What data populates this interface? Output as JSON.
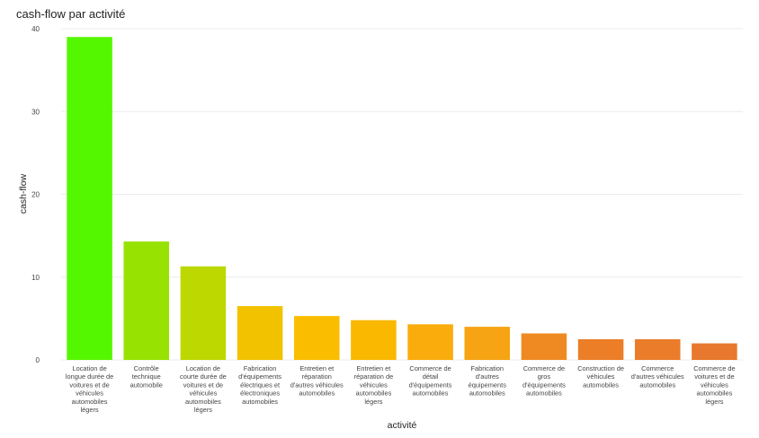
{
  "chart_data": {
    "type": "bar",
    "title": "cash-flow par activité",
    "xlabel": "activité",
    "ylabel": "cash-flow",
    "ylim": [
      0,
      40
    ],
    "yticks": [
      0,
      10,
      20,
      30,
      40
    ],
    "grid": true,
    "categories": [
      [
        "Location de",
        "longue durée de",
        "voitures et de",
        "véhicules",
        "automobiles",
        "légers"
      ],
      [
        "Contrôle",
        "technique",
        "automobile"
      ],
      [
        "Location de",
        "courte durée de",
        "voitures et de",
        "véhicules",
        "automobiles",
        "légers"
      ],
      [
        "Fabrication",
        "d'équipements",
        "électriques et",
        "électroniques",
        "automobiles"
      ],
      [
        "Entretien et",
        "réparation",
        "d'autres véhicules",
        "automobiles"
      ],
      [
        "Entretien et",
        "réparation de",
        "véhicules",
        "automobiles",
        "légers"
      ],
      [
        "Commerce de",
        "détail",
        "d'équipements",
        "automobiles"
      ],
      [
        "Fabrication",
        "d'autres",
        "équipements",
        "automobiles"
      ],
      [
        "Commerce de",
        "gros",
        "d'équipements",
        "automobiles"
      ],
      [
        "Construction de",
        "véhicules",
        "automobiles"
      ],
      [
        "Commerce",
        "d'autres véhicules",
        "automobiles"
      ],
      [
        "Commerce de",
        "voitures et de",
        "véhicules",
        "automobiles",
        "légers"
      ]
    ],
    "values": [
      39.0,
      14.3,
      11.3,
      6.5,
      5.3,
      4.8,
      4.3,
      4.0,
      3.2,
      2.5,
      2.5,
      2.0
    ],
    "colors": [
      "#55f700",
      "#97e200",
      "#bcd800",
      "#f2c200",
      "#fbbd00",
      "#fbb800",
      "#f9ac0c",
      "#f6a413",
      "#ef8a22",
      "#ec7e27",
      "#ea7c2a",
      "#e8782d"
    ]
  }
}
